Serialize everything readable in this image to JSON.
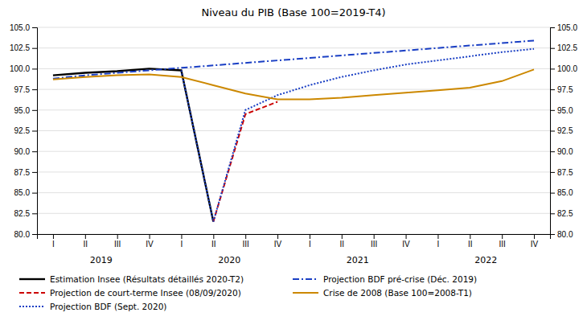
{
  "chart_data": {
    "type": "line",
    "title": "Niveau du PIB (Base 100=2019-T4)",
    "categories": [
      "I",
      "II",
      "III",
      "IV",
      "I",
      "II",
      "III",
      "IV",
      "I",
      "II",
      "III",
      "IV",
      "I",
      "II",
      "III",
      "IV"
    ],
    "annotations": [
      "2019",
      "2020",
      "2021",
      "2022"
    ],
    "series": [
      {
        "name": "Estimation Insee (Résultats détaillés 2020-T2)",
        "color": "#000000",
        "line_style": "solid",
        "values": [
          99.2,
          99.5,
          99.7,
          100.0,
          99.8,
          81.5,
          null,
          null,
          null,
          null,
          null,
          null,
          null,
          null,
          null,
          null
        ]
      },
      {
        "name": "Projection de court-terme Insee (08/09/2020)",
        "color": "#cc0000",
        "line_style": "dashed",
        "values": [
          null,
          null,
          null,
          null,
          null,
          81.5,
          94.5,
          96.0,
          null,
          null,
          null,
          null,
          null,
          null,
          null,
          null
        ]
      },
      {
        "name": "Projection BDF (Sept. 2020)",
        "color": "#1a3fc4",
        "line_style": "dotted",
        "values": [
          null,
          null,
          null,
          null,
          99.8,
          81.5,
          95.0,
          96.8,
          98.0,
          99.0,
          99.8,
          100.5,
          101.0,
          101.5,
          102.0,
          102.4
        ]
      },
      {
        "name": "Projection BDF pré-crise (Déc. 2019)",
        "color": "#1a3fc4",
        "line_style": "dashdot",
        "values": [
          98.8,
          99.2,
          99.5,
          99.8,
          100.1,
          100.4,
          100.7,
          101.0,
          101.3,
          101.6,
          101.9,
          102.2,
          102.5,
          102.8,
          103.1,
          103.4
        ]
      },
      {
        "name": "Crise de 2008 (Base 100=2008-T1)",
        "color": "#cc8800",
        "line_style": "solid",
        "values": [
          98.7,
          99.0,
          99.2,
          99.3,
          99.0,
          98.0,
          97.0,
          96.3,
          96.3,
          96.5,
          96.8,
          97.1,
          97.4,
          97.7,
          98.5,
          99.9
        ]
      }
    ],
    "ylim": [
      80.0,
      105.0
    ],
    "yticks": [
      {
        "value": 80.0,
        "label": "80.0"
      },
      82.5,
      {
        "value": 85.0,
        "label": "85.0"
      },
      87.5,
      {
        "value": 90.0,
        "label": "90.0"
      },
      92.5,
      {
        "value": 95.0,
        "label": "95.0"
      },
      97.5,
      {
        "value": 100.0,
        "label": "100.0"
      },
      102.5,
      {
        "value": 105.0,
        "label": "105.0"
      }
    ],
    "y2lim": [
      80.0,
      105.0
    ],
    "y2ticks": [
      {
        "value": 80.0,
        "label": "80.0"
      },
      82.5,
      {
        "value": 85.0,
        "label": "85.0"
      },
      87.5,
      {
        "value": 90.0,
        "label": "90.0"
      },
      92.5,
      {
        "value": 95.0,
        "label": "95.0"
      },
      97.5,
      {
        "value": 100.0,
        "label": "100.0"
      },
      102.5,
      {
        "value": 105.0,
        "label": "105.0"
      }
    ],
    "grid": true,
    "legend": "bottom"
  }
}
